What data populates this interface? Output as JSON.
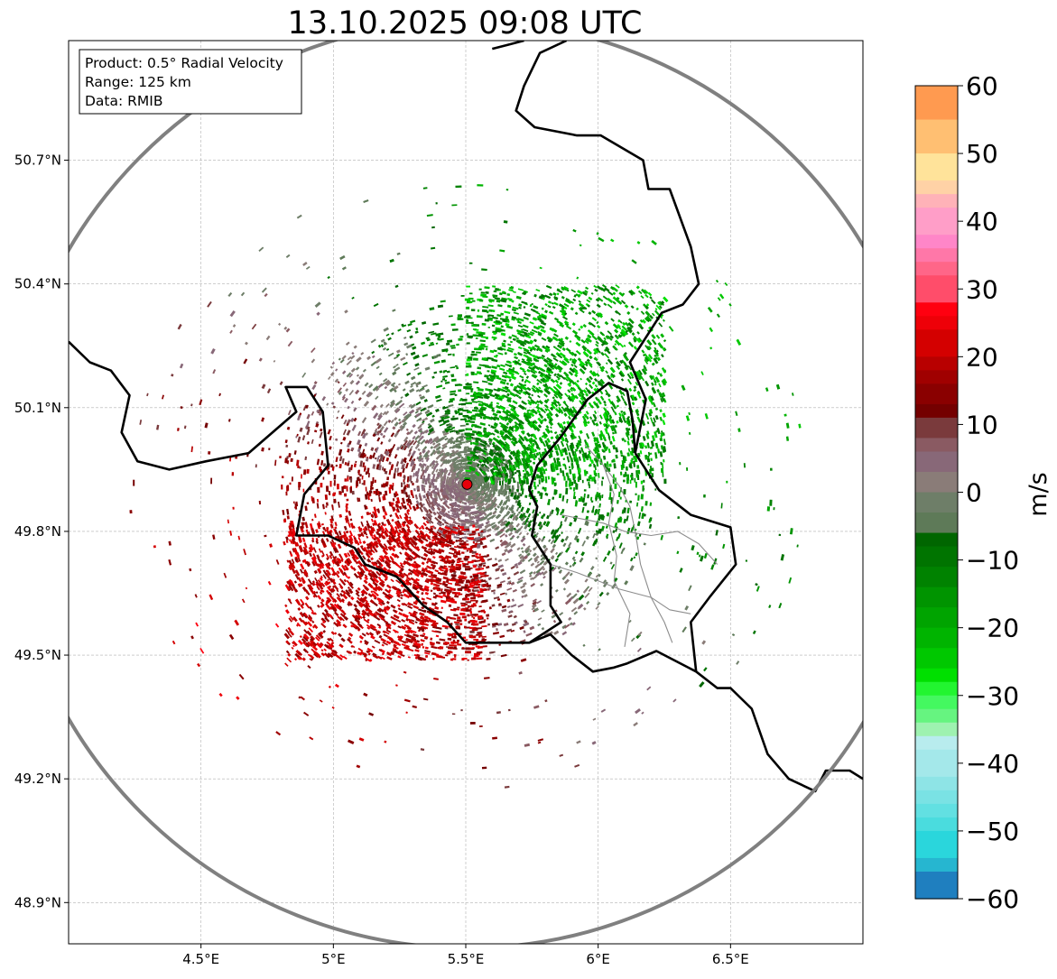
{
  "title": "13.10.2025 09:08 UTC",
  "info_box": {
    "product": "Product: 0.5° Radial Velocity",
    "range": "Range: 125 km",
    "data": "Data: RMIB"
  },
  "radar": {
    "site_lon": 5.505,
    "site_lat": 49.914,
    "range_km": 125
  },
  "map_extent": {
    "lon_min": 4.0,
    "lon_max": 7.0,
    "lat_min": 48.8,
    "lat_max": 50.99
  },
  "lat_axis": {
    "values": [
      50.7,
      50.4,
      50.1,
      49.8,
      49.5,
      49.2,
      48.9
    ],
    "labels": [
      "50.7°N",
      "50.4°N",
      "50.1°N",
      "49.8°N",
      "49.5°N",
      "49.2°N",
      "48.9°N"
    ]
  },
  "lon_axis": {
    "values": [
      4.5,
      5.0,
      5.5,
      6.0,
      6.5
    ],
    "labels": [
      "4.5°E",
      "5°E",
      "5.5°E",
      "6°E",
      "6.5°E"
    ]
  },
  "colorbar": {
    "label": "m/s",
    "min": -60,
    "max": 60,
    "ticks": [
      60,
      50,
      40,
      30,
      20,
      10,
      0,
      -10,
      -20,
      -30,
      -40,
      -50,
      -60
    ],
    "tick_labels": [
      "60",
      "50",
      "40",
      "30",
      "20",
      "10",
      "0",
      "−10",
      "−20",
      "−30",
      "−40",
      "−50",
      "−60"
    ],
    "bands": [
      {
        "from": 55,
        "to": 60,
        "color": "#ff9a50"
      },
      {
        "from": 50,
        "to": 55,
        "color": "#ffbf72"
      },
      {
        "from": 46,
        "to": 50,
        "color": "#ffe39a"
      },
      {
        "from": 44,
        "to": 46,
        "color": "#ffd2a6"
      },
      {
        "from": 42,
        "to": 44,
        "color": "#ffb2b8"
      },
      {
        "from": 38,
        "to": 42,
        "color": "#ff9ec8"
      },
      {
        "from": 36,
        "to": 38,
        "color": "#ff86c8"
      },
      {
        "from": 34,
        "to": 36,
        "color": "#ff77a8"
      },
      {
        "from": 32,
        "to": 34,
        "color": "#ff6688"
      },
      {
        "from": 28,
        "to": 32,
        "color": "#ff4d6a"
      },
      {
        "from": 26,
        "to": 28,
        "color": "#ff0010"
      },
      {
        "from": 24,
        "to": 26,
        "color": "#ee0008"
      },
      {
        "from": 20,
        "to": 24,
        "color": "#d40000"
      },
      {
        "from": 18,
        "to": 20,
        "color": "#b80000"
      },
      {
        "from": 16,
        "to": 18,
        "color": "#a00000"
      },
      {
        "from": 13,
        "to": 16,
        "color": "#8a0000"
      },
      {
        "from": 11,
        "to": 13,
        "color": "#740000"
      },
      {
        "from": 8,
        "to": 11,
        "color": "#7a3a3c"
      },
      {
        "from": 6,
        "to": 8,
        "color": "#8a5a62"
      },
      {
        "from": 3,
        "to": 6,
        "color": "#886878"
      },
      {
        "from": 0,
        "to": 3,
        "color": "#8a7c78"
      },
      {
        "from": -3,
        "to": 0,
        "color": "#6e7e68"
      },
      {
        "from": -6,
        "to": -3,
        "color": "#5e7a58"
      },
      {
        "from": -8,
        "to": -6,
        "color": "#006600"
      },
      {
        "from": -11,
        "to": -8,
        "color": "#007400"
      },
      {
        "from": -14,
        "to": -11,
        "color": "#008200"
      },
      {
        "from": -17,
        "to": -14,
        "color": "#009400"
      },
      {
        "from": -20,
        "to": -17,
        "color": "#00a400"
      },
      {
        "from": -23,
        "to": -20,
        "color": "#00b400"
      },
      {
        "from": -26,
        "to": -23,
        "color": "#00c800"
      },
      {
        "from": -28,
        "to": -26,
        "color": "#00e000"
      },
      {
        "from": -30,
        "to": -28,
        "color": "#22f530"
      },
      {
        "from": -32,
        "to": -30,
        "color": "#44f860"
      },
      {
        "from": -34,
        "to": -32,
        "color": "#66f480"
      },
      {
        "from": -36,
        "to": -34,
        "color": "#9ef2b0"
      },
      {
        "from": -38,
        "to": -36,
        "color": "#b8ecee"
      },
      {
        "from": -42,
        "to": -38,
        "color": "#a4e8ea"
      },
      {
        "from": -44,
        "to": -42,
        "color": "#8ee4e6"
      },
      {
        "from": -46,
        "to": -44,
        "color": "#7ae2e4"
      },
      {
        "from": -48,
        "to": -46,
        "color": "#62e0e2"
      },
      {
        "from": -50,
        "to": -48,
        "color": "#4adcde"
      },
      {
        "from": -54,
        "to": -50,
        "color": "#2ad6dc"
      },
      {
        "from": -56,
        "to": -54,
        "color": "#26b6d0"
      },
      {
        "from": -60,
        "to": -56,
        "color": "#1f7fbf"
      }
    ]
  },
  "borders_main": [
    {
      "name": "be-fr-south",
      "points": [
        [
          4.0,
          50.26
        ],
        [
          4.08,
          50.21
        ],
        [
          4.16,
          50.19
        ],
        [
          4.23,
          50.13
        ],
        [
          4.2,
          50.04
        ],
        [
          4.26,
          49.97
        ],
        [
          4.38,
          49.95
        ],
        [
          4.52,
          49.97
        ],
        [
          4.68,
          49.99
        ],
        [
          4.86,
          50.09
        ],
        [
          4.82,
          50.15
        ],
        [
          4.9,
          50.15
        ],
        [
          4.96,
          50.09
        ],
        [
          4.98,
          49.96
        ],
        [
          4.89,
          49.89
        ],
        [
          4.86,
          49.79
        ],
        [
          4.98,
          49.79
        ],
        [
          5.08,
          49.76
        ],
        [
          5.12,
          49.72
        ],
        [
          5.24,
          49.69
        ],
        [
          5.34,
          49.62
        ],
        [
          5.43,
          49.58
        ],
        [
          5.5,
          49.53
        ],
        [
          5.62,
          49.53
        ],
        [
          5.74,
          49.53
        ],
        [
          5.82,
          49.55
        ],
        [
          5.9,
          49.5
        ],
        [
          5.98,
          49.46
        ],
        [
          6.06,
          49.47
        ],
        [
          6.11,
          49.48
        ],
        [
          6.22,
          49.51
        ],
        [
          6.37,
          49.46
        ],
        [
          6.45,
          49.42
        ],
        [
          6.5,
          49.42
        ],
        [
          6.58,
          49.37
        ],
        [
          6.64,
          49.26
        ],
        [
          6.72,
          49.2
        ],
        [
          6.82,
          49.17
        ],
        [
          6.86,
          49.22
        ],
        [
          6.95,
          49.22
        ],
        [
          7.0,
          49.2
        ]
      ]
    },
    {
      "name": "lux-be",
      "points": [
        [
          5.74,
          49.53
        ],
        [
          5.86,
          49.58
        ],
        [
          5.82,
          49.62
        ],
        [
          5.82,
          49.72
        ],
        [
          5.75,
          49.79
        ],
        [
          5.77,
          49.86
        ],
        [
          5.74,
          49.9
        ],
        [
          5.77,
          49.96
        ],
        [
          5.86,
          50.03
        ],
        [
          5.96,
          50.12
        ],
        [
          6.04,
          50.16
        ],
        [
          6.11,
          50.14
        ],
        [
          6.13,
          50.07
        ],
        [
          6.14,
          49.99
        ]
      ]
    },
    {
      "name": "lux-de",
      "points": [
        [
          6.14,
          49.99
        ],
        [
          6.23,
          49.9
        ],
        [
          6.35,
          49.84
        ],
        [
          6.5,
          49.81
        ],
        [
          6.52,
          49.72
        ],
        [
          6.42,
          49.64
        ],
        [
          6.35,
          49.58
        ],
        [
          6.37,
          49.46
        ]
      ]
    },
    {
      "name": "be-de-nl-north",
      "points": [
        [
          6.14,
          49.99
        ],
        [
          6.18,
          50.12
        ],
        [
          6.12,
          50.21
        ],
        [
          6.24,
          50.33
        ],
        [
          6.32,
          50.35
        ],
        [
          6.38,
          50.4
        ],
        [
          6.35,
          50.49
        ],
        [
          6.27,
          50.63
        ],
        [
          6.19,
          50.63
        ],
        [
          6.17,
          50.7
        ],
        [
          6.01,
          50.76
        ],
        [
          5.92,
          50.76
        ],
        [
          5.76,
          50.78
        ],
        [
          5.69,
          50.82
        ],
        [
          5.72,
          50.88
        ],
        [
          5.78,
          50.96
        ],
        [
          5.88,
          50.99
        ]
      ]
    },
    {
      "name": "nl-west",
      "points": [
        [
          5.72,
          50.99
        ],
        [
          5.66,
          50.98
        ],
        [
          5.6,
          50.97
        ]
      ]
    }
  ],
  "borders_admin": [
    {
      "name": "lux-cantons-1",
      "points": [
        [
          5.86,
          49.84
        ],
        [
          5.94,
          49.83
        ],
        [
          6.02,
          49.82
        ],
        [
          6.1,
          49.8
        ],
        [
          6.2,
          49.79
        ],
        [
          6.3,
          49.8
        ],
        [
          6.38,
          49.77
        ],
        [
          6.45,
          49.72
        ]
      ]
    },
    {
      "name": "lux-cantons-2",
      "points": [
        [
          5.95,
          50.01
        ],
        [
          6.02,
          49.96
        ],
        [
          6.08,
          49.91
        ],
        [
          6.12,
          49.86
        ],
        [
          6.14,
          49.8
        ],
        [
          6.16,
          49.72
        ],
        [
          6.2,
          49.64
        ],
        [
          6.25,
          49.58
        ],
        [
          6.28,
          49.53
        ]
      ]
    },
    {
      "name": "lux-cantons-3",
      "points": [
        [
          5.82,
          49.72
        ],
        [
          5.92,
          49.7
        ],
        [
          6.0,
          49.68
        ],
        [
          6.08,
          49.66
        ],
        [
          6.2,
          49.64
        ],
        [
          6.27,
          49.61
        ],
        [
          6.35,
          49.6
        ]
      ]
    },
    {
      "name": "lux-cantons-4",
      "points": [
        [
          6.02,
          49.96
        ],
        [
          6.06,
          49.89
        ],
        [
          6.04,
          49.82
        ],
        [
          6.07,
          49.74
        ],
        [
          6.06,
          49.68
        ],
        [
          6.12,
          49.6
        ],
        [
          6.1,
          49.52
        ]
      ]
    }
  ]
}
